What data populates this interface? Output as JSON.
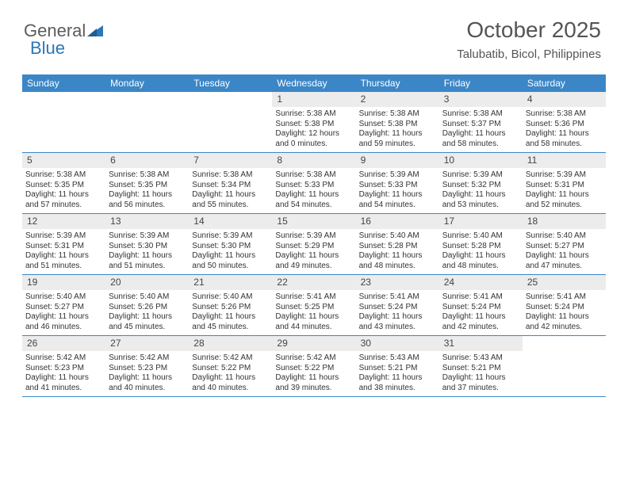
{
  "brand": {
    "part1": "General",
    "part2": "Blue"
  },
  "header": {
    "title": "October 2025",
    "location": "Talubatib, Bicol, Philippines"
  },
  "colors": {
    "header_band": "#3b86c6",
    "header_text": "#ffffff",
    "daynum_bg": "#ececec",
    "week_divider": "#3b86c6",
    "text": "#333333",
    "brand_gray": "#5c5c5c",
    "brand_blue": "#2b77b8"
  },
  "calendar": {
    "type": "table",
    "day_names": [
      "Sunday",
      "Monday",
      "Tuesday",
      "Wednesday",
      "Thursday",
      "Friday",
      "Saturday"
    ],
    "fontsize_header": 12,
    "fontsize_daynum": 12,
    "fontsize_body": 10,
    "weeks": [
      [
        {
          "empty": true
        },
        {
          "empty": true
        },
        {
          "empty": true
        },
        {
          "num": "1",
          "sunrise": "Sunrise: 5:38 AM",
          "sunset": "Sunset: 5:38 PM",
          "daylight1": "Daylight: 12 hours",
          "daylight2": "and 0 minutes."
        },
        {
          "num": "2",
          "sunrise": "Sunrise: 5:38 AM",
          "sunset": "Sunset: 5:38 PM",
          "daylight1": "Daylight: 11 hours",
          "daylight2": "and 59 minutes."
        },
        {
          "num": "3",
          "sunrise": "Sunrise: 5:38 AM",
          "sunset": "Sunset: 5:37 PM",
          "daylight1": "Daylight: 11 hours",
          "daylight2": "and 58 minutes."
        },
        {
          "num": "4",
          "sunrise": "Sunrise: 5:38 AM",
          "sunset": "Sunset: 5:36 PM",
          "daylight1": "Daylight: 11 hours",
          "daylight2": "and 58 minutes."
        }
      ],
      [
        {
          "num": "5",
          "sunrise": "Sunrise: 5:38 AM",
          "sunset": "Sunset: 5:35 PM",
          "daylight1": "Daylight: 11 hours",
          "daylight2": "and 57 minutes."
        },
        {
          "num": "6",
          "sunrise": "Sunrise: 5:38 AM",
          "sunset": "Sunset: 5:35 PM",
          "daylight1": "Daylight: 11 hours",
          "daylight2": "and 56 minutes."
        },
        {
          "num": "7",
          "sunrise": "Sunrise: 5:38 AM",
          "sunset": "Sunset: 5:34 PM",
          "daylight1": "Daylight: 11 hours",
          "daylight2": "and 55 minutes."
        },
        {
          "num": "8",
          "sunrise": "Sunrise: 5:38 AM",
          "sunset": "Sunset: 5:33 PM",
          "daylight1": "Daylight: 11 hours",
          "daylight2": "and 54 minutes."
        },
        {
          "num": "9",
          "sunrise": "Sunrise: 5:39 AM",
          "sunset": "Sunset: 5:33 PM",
          "daylight1": "Daylight: 11 hours",
          "daylight2": "and 54 minutes."
        },
        {
          "num": "10",
          "sunrise": "Sunrise: 5:39 AM",
          "sunset": "Sunset: 5:32 PM",
          "daylight1": "Daylight: 11 hours",
          "daylight2": "and 53 minutes."
        },
        {
          "num": "11",
          "sunrise": "Sunrise: 5:39 AM",
          "sunset": "Sunset: 5:31 PM",
          "daylight1": "Daylight: 11 hours",
          "daylight2": "and 52 minutes."
        }
      ],
      [
        {
          "num": "12",
          "sunrise": "Sunrise: 5:39 AM",
          "sunset": "Sunset: 5:31 PM",
          "daylight1": "Daylight: 11 hours",
          "daylight2": "and 51 minutes."
        },
        {
          "num": "13",
          "sunrise": "Sunrise: 5:39 AM",
          "sunset": "Sunset: 5:30 PM",
          "daylight1": "Daylight: 11 hours",
          "daylight2": "and 51 minutes."
        },
        {
          "num": "14",
          "sunrise": "Sunrise: 5:39 AM",
          "sunset": "Sunset: 5:30 PM",
          "daylight1": "Daylight: 11 hours",
          "daylight2": "and 50 minutes."
        },
        {
          "num": "15",
          "sunrise": "Sunrise: 5:39 AM",
          "sunset": "Sunset: 5:29 PM",
          "daylight1": "Daylight: 11 hours",
          "daylight2": "and 49 minutes."
        },
        {
          "num": "16",
          "sunrise": "Sunrise: 5:40 AM",
          "sunset": "Sunset: 5:28 PM",
          "daylight1": "Daylight: 11 hours",
          "daylight2": "and 48 minutes."
        },
        {
          "num": "17",
          "sunrise": "Sunrise: 5:40 AM",
          "sunset": "Sunset: 5:28 PM",
          "daylight1": "Daylight: 11 hours",
          "daylight2": "and 48 minutes."
        },
        {
          "num": "18",
          "sunrise": "Sunrise: 5:40 AM",
          "sunset": "Sunset: 5:27 PM",
          "daylight1": "Daylight: 11 hours",
          "daylight2": "and 47 minutes."
        }
      ],
      [
        {
          "num": "19",
          "sunrise": "Sunrise: 5:40 AM",
          "sunset": "Sunset: 5:27 PM",
          "daylight1": "Daylight: 11 hours",
          "daylight2": "and 46 minutes."
        },
        {
          "num": "20",
          "sunrise": "Sunrise: 5:40 AM",
          "sunset": "Sunset: 5:26 PM",
          "daylight1": "Daylight: 11 hours",
          "daylight2": "and 45 minutes."
        },
        {
          "num": "21",
          "sunrise": "Sunrise: 5:40 AM",
          "sunset": "Sunset: 5:26 PM",
          "daylight1": "Daylight: 11 hours",
          "daylight2": "and 45 minutes."
        },
        {
          "num": "22",
          "sunrise": "Sunrise: 5:41 AM",
          "sunset": "Sunset: 5:25 PM",
          "daylight1": "Daylight: 11 hours",
          "daylight2": "and 44 minutes."
        },
        {
          "num": "23",
          "sunrise": "Sunrise: 5:41 AM",
          "sunset": "Sunset: 5:24 PM",
          "daylight1": "Daylight: 11 hours",
          "daylight2": "and 43 minutes."
        },
        {
          "num": "24",
          "sunrise": "Sunrise: 5:41 AM",
          "sunset": "Sunset: 5:24 PM",
          "daylight1": "Daylight: 11 hours",
          "daylight2": "and 42 minutes."
        },
        {
          "num": "25",
          "sunrise": "Sunrise: 5:41 AM",
          "sunset": "Sunset: 5:24 PM",
          "daylight1": "Daylight: 11 hours",
          "daylight2": "and 42 minutes."
        }
      ],
      [
        {
          "num": "26",
          "sunrise": "Sunrise: 5:42 AM",
          "sunset": "Sunset: 5:23 PM",
          "daylight1": "Daylight: 11 hours",
          "daylight2": "and 41 minutes."
        },
        {
          "num": "27",
          "sunrise": "Sunrise: 5:42 AM",
          "sunset": "Sunset: 5:23 PM",
          "daylight1": "Daylight: 11 hours",
          "daylight2": "and 40 minutes."
        },
        {
          "num": "28",
          "sunrise": "Sunrise: 5:42 AM",
          "sunset": "Sunset: 5:22 PM",
          "daylight1": "Daylight: 11 hours",
          "daylight2": "and 40 minutes."
        },
        {
          "num": "29",
          "sunrise": "Sunrise: 5:42 AM",
          "sunset": "Sunset: 5:22 PM",
          "daylight1": "Daylight: 11 hours",
          "daylight2": "and 39 minutes."
        },
        {
          "num": "30",
          "sunrise": "Sunrise: 5:43 AM",
          "sunset": "Sunset: 5:21 PM",
          "daylight1": "Daylight: 11 hours",
          "daylight2": "and 38 minutes."
        },
        {
          "num": "31",
          "sunrise": "Sunrise: 5:43 AM",
          "sunset": "Sunset: 5:21 PM",
          "daylight1": "Daylight: 11 hours",
          "daylight2": "and 37 minutes."
        },
        {
          "empty": true
        }
      ]
    ]
  }
}
